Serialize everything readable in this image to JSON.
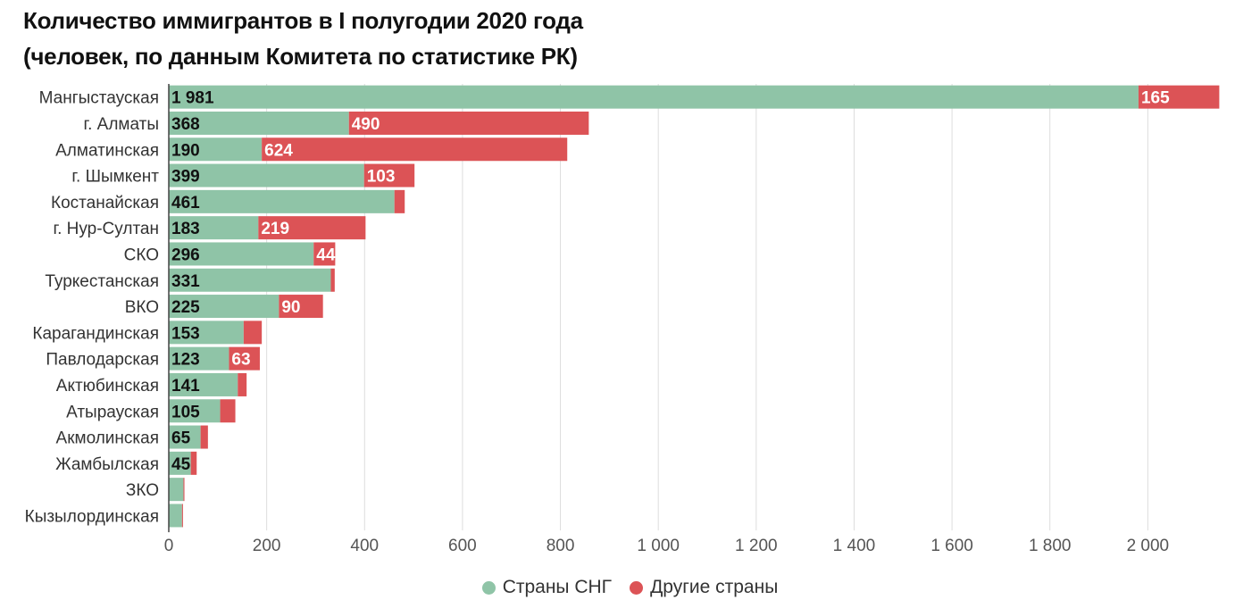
{
  "chart_data": {
    "type": "bar",
    "orientation": "horizontal",
    "stacked": true,
    "title": "Количество иммигрантов в I полугодии 2020 года",
    "subtitle": "(человек, по данным Комитета по статистике РК)",
    "categories": [
      "Мангыстауская",
      "г. Алматы",
      "Алматинская",
      "г. Шымкент",
      "Костанайская",
      "г. Нур-Султан",
      "СКО",
      "Туркестанская",
      "ВКО",
      "Карагандинская",
      "Павлодарская",
      "Актюбинская",
      "Атырауская",
      "Акмолинская",
      "Жамбылская",
      "ЗКО",
      "Кызылординская"
    ],
    "series": [
      {
        "name": "Страны СНГ",
        "color": "#8fc4a7",
        "values": [
          1981,
          368,
          190,
          399,
          461,
          183,
          296,
          331,
          225,
          153,
          123,
          141,
          105,
          65,
          45,
          30,
          27
        ],
        "labels": [
          "1 981",
          "368",
          "190",
          "399",
          "461",
          "183",
          "296",
          "331",
          "225",
          "153",
          "123",
          "141",
          "105",
          "65",
          "45",
          "",
          ""
        ]
      },
      {
        "name": "Другие страны",
        "color": "#dc5356",
        "values": [
          165,
          490,
          624,
          103,
          21,
          219,
          44,
          8,
          90,
          37,
          63,
          18,
          31,
          15,
          12,
          2,
          2
        ],
        "labels": [
          "165",
          "490",
          "624",
          "103",
          "",
          "219",
          "44",
          "",
          "90",
          "",
          "63",
          "",
          "",
          "",
          "",
          "",
          ""
        ]
      }
    ],
    "xlim": [
      0,
      2200
    ],
    "xticks": [
      0,
      200,
      400,
      600,
      800,
      1000,
      1200,
      1400,
      1600,
      1800,
      2000
    ],
    "xtick_labels": [
      "0",
      "200",
      "400",
      "600",
      "800",
      "1 000",
      "1 200",
      "1 400",
      "1 600",
      "1 800",
      "2 000"
    ],
    "grid": true,
    "legend_position": "bottom-center"
  }
}
